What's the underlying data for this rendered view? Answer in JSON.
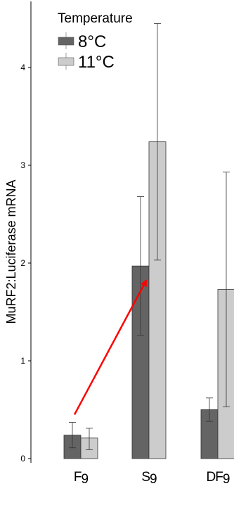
{
  "chart_data": {
    "type": "bar",
    "title": "",
    "xlabel": "",
    "ylabel": "MuRF2:Luciferase mRNA",
    "categories": [
      "F9",
      "S9",
      "DF9"
    ],
    "category_labels": [
      {
        "main": "F",
        "sub": "9"
      },
      {
        "main": "S",
        "sub": "9"
      },
      {
        "main": "DF",
        "sub": "9"
      }
    ],
    "series": [
      {
        "name": "8°C",
        "color": "#646464",
        "values": [
          0.24,
          1.97,
          0.5
        ],
        "err_low": [
          0.11,
          1.26,
          0.38
        ],
        "err_high": [
          0.37,
          2.68,
          0.62
        ]
      },
      {
        "name": "11°C",
        "color": "#cccccc",
        "values": [
          0.21,
          3.24,
          1.73
        ],
        "err_low": [
          0.09,
          2.03,
          0.53
        ],
        "err_high": [
          0.31,
          4.45,
          2.93
        ]
      }
    ],
    "ylim": [
      -0.05,
      4.6
    ],
    "yticks": [
      0,
      1,
      2,
      3,
      4
    ],
    "ytick_labels": [
      "0",
      "1",
      "2",
      "3",
      "4"
    ],
    "grid": false,
    "legend": {
      "title": "Temperature",
      "position": "top-left"
    },
    "annotation": {
      "type": "arrow",
      "color": "#ff0000",
      "from": {
        "category": "F9",
        "value": 0.45
      },
      "to": {
        "category": "S9",
        "value": 1.82
      }
    }
  }
}
